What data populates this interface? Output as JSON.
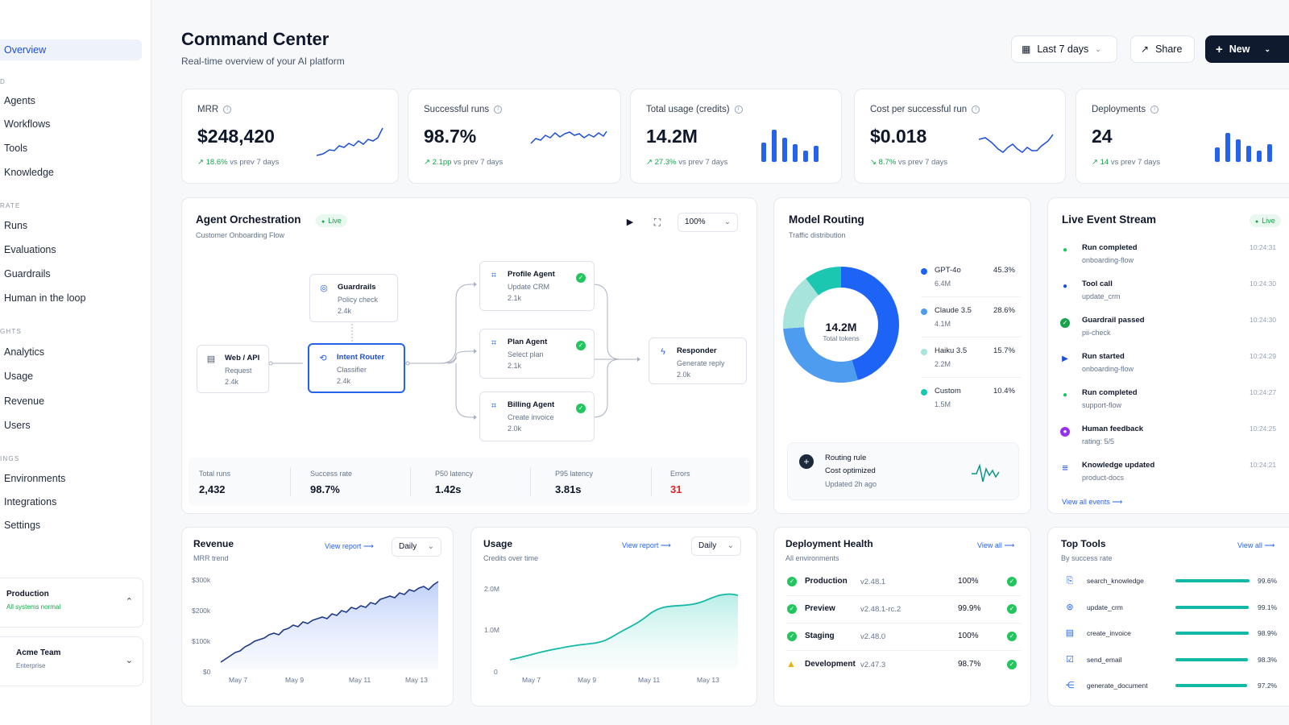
{
  "sidebar": {
    "items": [
      {
        "label": "Overview"
      },
      {
        "label": "Agents"
      },
      {
        "label": "Workflows"
      },
      {
        "label": "Tools"
      },
      {
        "label": "Knowledge"
      },
      {
        "label": "Runs"
      },
      {
        "label": "Evaluations"
      },
      {
        "label": "Guardrails"
      },
      {
        "label": "Human in the loop"
      },
      {
        "label": "Analytics"
      },
      {
        "label": "Usage"
      },
      {
        "label": "Revenue"
      },
      {
        "label": "Users"
      },
      {
        "label": "Environments"
      },
      {
        "label": "Integrations"
      },
      {
        "label": "Settings"
      }
    ],
    "sections": [
      "D",
      "RATE",
      "GHTS",
      "INGS"
    ],
    "env": {
      "title": "Production",
      "status": "All systems normal"
    },
    "team": {
      "title": "Acme Team",
      "plan": "Enterprise"
    }
  },
  "header": {
    "title": "Command Center",
    "subtitle": "Real-time overview of your AI platform",
    "date_range": "Last 7 days",
    "share": "Share",
    "new": "New"
  },
  "kpis": [
    {
      "label": "MRR",
      "value": "$248,420",
      "delta": "18.6%",
      "delta_suffix": "vs prev 7 days"
    },
    {
      "label": "Successful runs",
      "value": "98.7%",
      "delta": "2.1pp",
      "delta_suffix": "vs prev 7 days"
    },
    {
      "label": "Total usage (credits)",
      "value": "14.2M",
      "delta": "27.3%",
      "delta_suffix": "vs prev 7 days"
    },
    {
      "label": "Cost per successful run",
      "value": "$0.018",
      "delta": "8.7%",
      "delta_suffix": "vs prev 7 days"
    },
    {
      "label": "Deployments",
      "value": "24",
      "delta": "14",
      "delta_suffix": "vs prev 7 days"
    }
  ],
  "orchestration": {
    "title": "Agent Orchestration",
    "live": "Live",
    "subtitle": "Customer Onboarding Flow",
    "zoom": "100%",
    "nodes": {
      "web": {
        "title": "Web / API",
        "sub": "Request",
        "count": "2.4k"
      },
      "guardrails": {
        "title": "Guardrails",
        "sub": "Policy check",
        "count": "2.4k"
      },
      "router": {
        "title": "Intent Router",
        "sub": "Classifier",
        "count": "2.4k"
      },
      "profile": {
        "title": "Profile Agent",
        "sub": "Update CRM",
        "count": "2.1k"
      },
      "plan": {
        "title": "Plan Agent",
        "sub": "Select plan",
        "count": "2.1k"
      },
      "billing": {
        "title": "Billing Agent",
        "sub": "Create invoice",
        "count": "2.0k"
      },
      "responder": {
        "title": "Responder",
        "sub": "Generate reply",
        "count": "2.0k"
      }
    },
    "stats": [
      {
        "label": "Total runs",
        "value": "2,432"
      },
      {
        "label": "Success rate",
        "value": "98.7%"
      },
      {
        "label": "P50 latency",
        "value": "1.42s"
      },
      {
        "label": "P95 latency",
        "value": "3.81s"
      },
      {
        "label": "Errors",
        "value": "31"
      }
    ]
  },
  "routing": {
    "title": "Model Routing",
    "subtitle": "Traffic distribution",
    "center_value": "14.2M",
    "center_label": "Total tokens",
    "models": [
      {
        "name": "GPT-4o",
        "tokens": "6.4M",
        "pct": "45.3%",
        "share": 45.3,
        "color": "#1d63f5"
      },
      {
        "name": "Claude 3.5",
        "tokens": "4.1M",
        "pct": "28.6%",
        "share": 28.6,
        "color": "#4d9cf0"
      },
      {
        "name": "Haiku 3.5",
        "tokens": "2.2M",
        "pct": "15.7%",
        "share": 15.7,
        "color": "#a6e4dc"
      },
      {
        "name": "Custom",
        "tokens": "1.5M",
        "pct": "10.4%",
        "share": 10.4,
        "color": "#1cc7b2"
      }
    ],
    "rule": {
      "title": "Routing rule",
      "value": "Cost optimized",
      "updated": "Updated 2h ago"
    }
  },
  "events": {
    "title": "Live Event Stream",
    "live": "Live",
    "items": [
      {
        "title": "Run completed",
        "sub": "onboarding-flow",
        "time": "10:24:31",
        "icon": "check-dot-icon",
        "color": "#22c55e"
      },
      {
        "title": "Tool call",
        "sub": "update_crm",
        "time": "10:24:30",
        "icon": "tool-dot-icon",
        "color": "#1d4ed8"
      },
      {
        "title": "Guardrail passed",
        "sub": "pii-check",
        "time": "10:24:30",
        "icon": "shield-check-icon",
        "color": "#16a34a"
      },
      {
        "title": "Run started",
        "sub": "onboarding-flow",
        "time": "10:24:29",
        "icon": "play-icon",
        "color": "#1d4ed8"
      },
      {
        "title": "Run completed",
        "sub": "support-flow",
        "time": "10:24:27",
        "icon": "check-dot-icon",
        "color": "#22c55e"
      },
      {
        "title": "Human feedback",
        "sub": "rating: 5/5",
        "time": "10:24:25",
        "icon": "feedback-icon",
        "color": "#9333ea"
      },
      {
        "title": "Knowledge updated",
        "sub": "product-docs",
        "time": "10:24:21",
        "icon": "database-icon",
        "color": "#1d4ed8"
      }
    ],
    "view_all": "View all events"
  },
  "revenue": {
    "title": "Revenue",
    "subtitle": "MRR trend",
    "link": "View report",
    "period": "Daily",
    "y_ticks": [
      "$300k",
      "$200k",
      "$100k",
      "$0"
    ],
    "x_ticks": [
      "May 7",
      "May 9",
      "May 11",
      "May 13"
    ]
  },
  "usage": {
    "title": "Usage",
    "subtitle": "Credits over time",
    "link": "View report",
    "period": "Daily",
    "y_ticks": [
      "2.0M",
      "1.0M",
      "0"
    ],
    "x_ticks": [
      "May 7",
      "May 9",
      "May 11",
      "May 13"
    ]
  },
  "deployments": {
    "title": "Deployment Health",
    "subtitle": "All environments",
    "link": "View all",
    "rows": [
      {
        "name": "Production",
        "version": "v2.48.1",
        "pct": "100%",
        "status": "ok"
      },
      {
        "name": "Preview",
        "version": "v2.48.1-rc.2",
        "pct": "99.9%",
        "status": "ok"
      },
      {
        "name": "Staging",
        "version": "v2.48.0",
        "pct": "100%",
        "status": "ok"
      },
      {
        "name": "Development",
        "version": "v2.47.3",
        "pct": "98.7%",
        "status": "warning"
      }
    ]
  },
  "tools": {
    "title": "Top Tools",
    "subtitle": "By success rate",
    "link": "View all",
    "rows": [
      {
        "name": "search_knowledge",
        "pct": "99.6%",
        "value": 99.6,
        "icon": "document-search-icon"
      },
      {
        "name": "update_crm",
        "pct": "99.1%",
        "value": 99.1,
        "icon": "crm-icon"
      },
      {
        "name": "create_invoice",
        "pct": "98.9%",
        "value": 98.9,
        "icon": "invoice-icon"
      },
      {
        "name": "send_email",
        "pct": "98.3%",
        "value": 98.3,
        "icon": "send-icon"
      },
      {
        "name": "generate_document",
        "pct": "97.2%",
        "value": 97.2,
        "icon": "share-nodes-icon"
      }
    ]
  },
  "colors": {
    "accent": "#2563eb",
    "success": "#16a34a",
    "danger": "#dc2626",
    "teal": "#14b8a6",
    "dark": "#0f1a2e"
  }
}
